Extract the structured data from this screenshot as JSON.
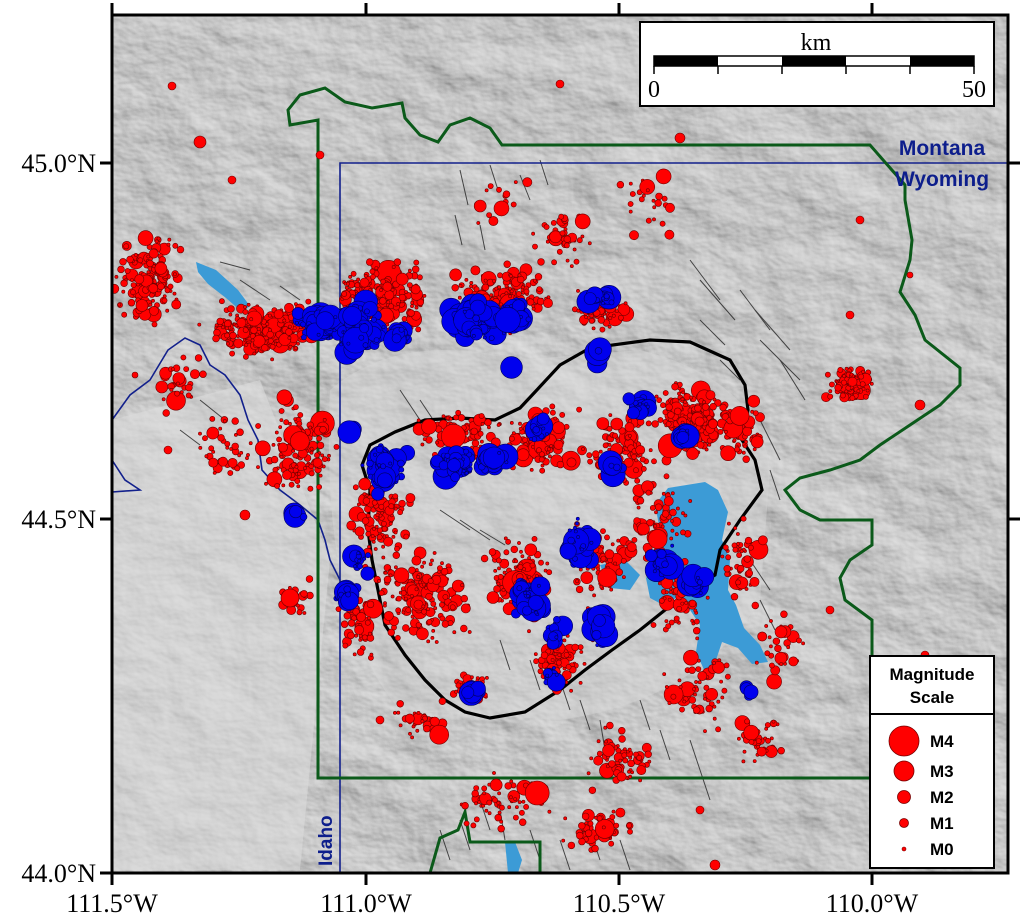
{
  "map": {
    "axis": {
      "x_ticks": [
        "111.5°W",
        "111.0°W",
        "110.5°W",
        "110.0°W"
      ],
      "y_ticks": [
        "45.0°N",
        "44.5°N",
        "44.0°N"
      ]
    },
    "state_labels": {
      "montana": "Montana",
      "wyoming": "Wyoming",
      "idaho": "Idaho"
    },
    "scale_bar": {
      "unit": "km",
      "start": "0",
      "end": "50"
    },
    "legend": {
      "title_line1": "Magnitude",
      "title_line2": "Scale",
      "items": [
        "M4",
        "M3",
        "M2",
        "M1",
        "M0"
      ]
    },
    "colors": {
      "earthquakes_red": "#ff0000",
      "earthquakes_blue": "#0000ee",
      "lakes": "#3c9bd6",
      "park_boundary": "#0b5a1a",
      "state_boundary": "#12208c",
      "caldera_outline": "#000000",
      "terrain": "#c8c8c8"
    }
  }
}
